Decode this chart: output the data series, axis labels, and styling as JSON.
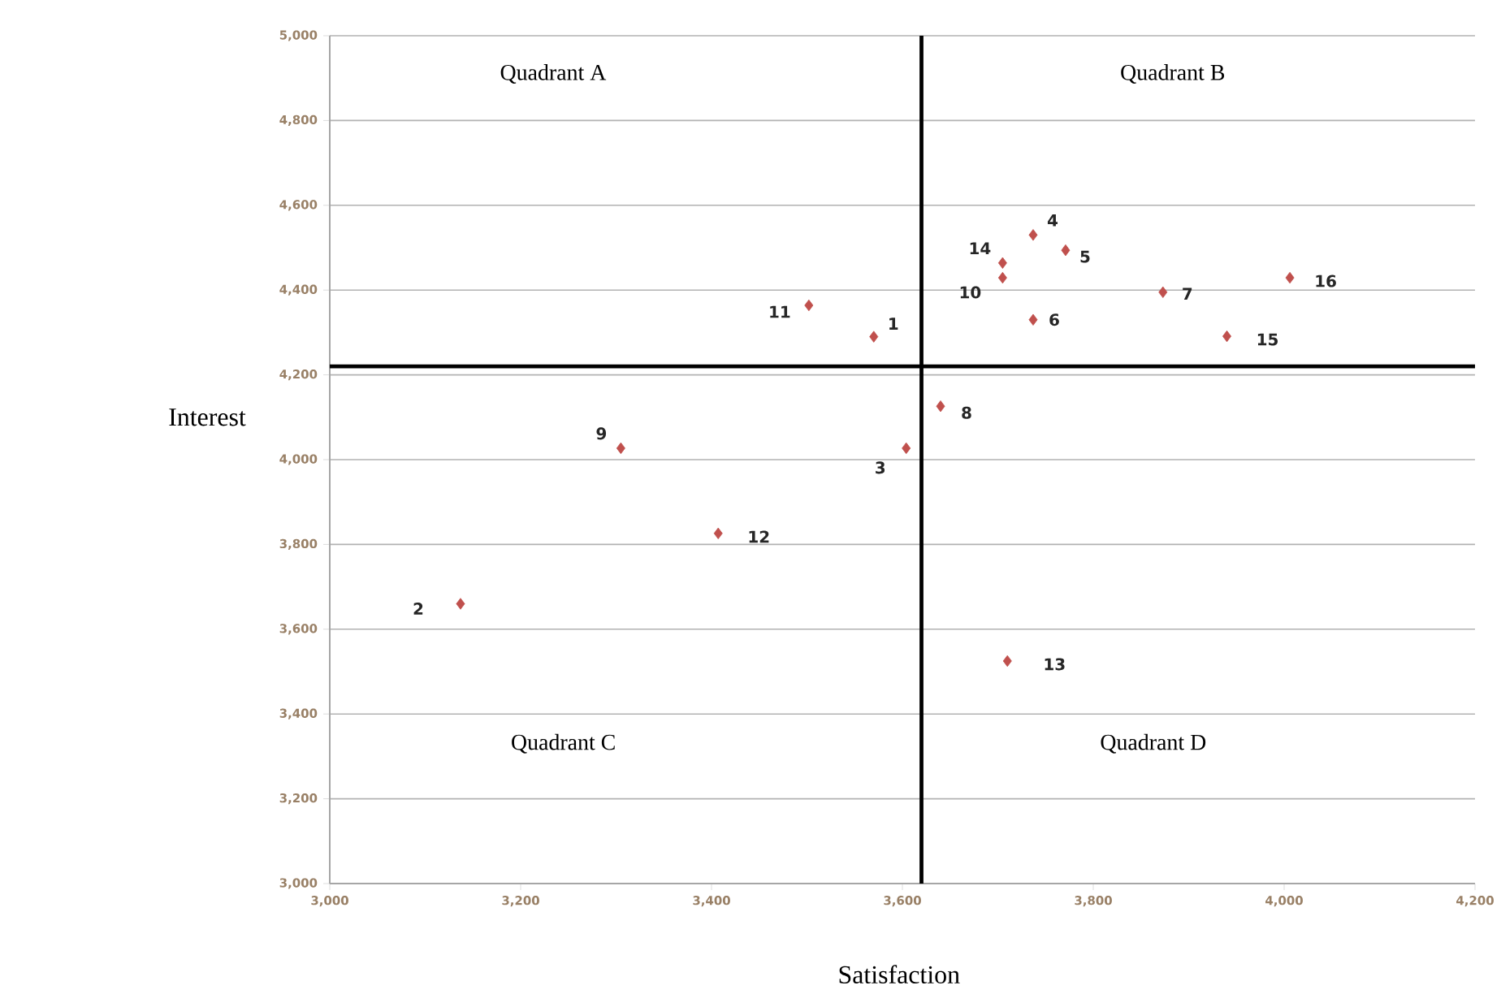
{
  "chart_data": {
    "type": "scatter",
    "xlabel": "Satisfaction",
    "ylabel": "Interest",
    "x": [
      3570,
      3137,
      3604,
      3737,
      3771,
      3737,
      3873,
      3640,
      3305,
      3705,
      3502,
      3407,
      3710,
      3705,
      3940,
      4006
    ],
    "series": [
      {
        "color": "#c0504d",
        "values": [
          4290,
          3660,
          4027,
          4530,
          4494,
          4330,
          4395,
          4126,
          4027,
          4429,
          4364,
          3826,
          3525,
          4464,
          4291,
          4429
        ]
      }
    ],
    "marker": "diamond",
    "grid": "y",
    "xlim": [
      3000,
      4200
    ],
    "ylim": [
      3000,
      5000
    ],
    "xticks": [
      {
        "value": 3000,
        "label": "3,000"
      },
      {
        "value": 3200,
        "label": "3,200"
      },
      {
        "value": 3400,
        "label": "3,400"
      },
      {
        "value": 3600,
        "label": "3,600"
      },
      {
        "value": 3800,
        "label": "3,800"
      },
      {
        "value": 4000,
        "label": "4,000"
      },
      {
        "value": 4200,
        "label": "4,200"
      }
    ],
    "yticks": [
      {
        "value": 3000,
        "label": "3,000"
      },
      {
        "value": 3200,
        "label": "3,200"
      },
      {
        "value": 3400,
        "label": "3,400"
      },
      {
        "value": 3600,
        "label": "3,600"
      },
      {
        "value": 3800,
        "label": "3,800"
      },
      {
        "value": 4000,
        "label": "4,000"
      },
      {
        "value": 4200,
        "label": "4,200"
      },
      {
        "value": 4400,
        "label": "4,400"
      },
      {
        "value": 4600,
        "label": "4,600"
      },
      {
        "value": 4800,
        "label": "4,800"
      },
      {
        "value": 5000,
        "label": "5,000"
      }
    ],
    "ref_lines": [
      {
        "axis": "x",
        "value": 3620,
        "color": "#000000"
      },
      {
        "axis": "y",
        "value": 4220,
        "color": "#000000"
      }
    ],
    "annotations": [
      {
        "text": "1",
        "x": 3570,
        "y": 4290
      },
      {
        "text": "2",
        "x": 3137,
        "y": 3660
      },
      {
        "text": "3",
        "x": 3604,
        "y": 4027
      },
      {
        "text": "4",
        "x": 3737,
        "y": 4530
      },
      {
        "text": "5",
        "x": 3771,
        "y": 4494
      },
      {
        "text": "6",
        "x": 3737,
        "y": 4330
      },
      {
        "text": "7",
        "x": 3873,
        "y": 4395
      },
      {
        "text": "8",
        "x": 3640,
        "y": 4126
      },
      {
        "text": "9",
        "x": 3305,
        "y": 4027
      },
      {
        "text": "10",
        "x": 3705,
        "y": 4429
      },
      {
        "text": "11",
        "x": 3502,
        "y": 4364
      },
      {
        "text": "12",
        "x": 3407,
        "y": 3826
      },
      {
        "text": "13",
        "x": 3710,
        "y": 3525
      },
      {
        "text": "14",
        "x": 3705,
        "y": 4464
      },
      {
        "text": "15",
        "x": 3940,
        "y": 4291
      },
      {
        "text": "16",
        "x": 4006,
        "y": 4429
      },
      "Quadrant A",
      "Quadrant B",
      "Quadrant C",
      "Quadrant D"
    ]
  }
}
